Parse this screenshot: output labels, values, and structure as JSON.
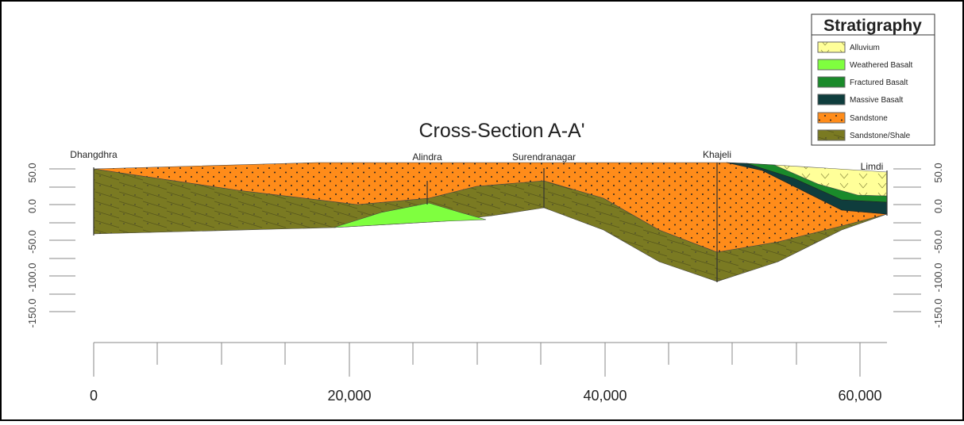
{
  "title": "Cross-Section A-A'",
  "legend": {
    "title": "Stratigraphy",
    "items": [
      "Alluvium",
      "Weathered Basalt",
      "Fractured  Basalt",
      "Massive Basalt",
      "Sandstone",
      "Sandstone/Shale"
    ]
  },
  "wells": [
    "Dhangdhra",
    "Alindra",
    "Surendranagar",
    "Khajeli",
    "Limdi"
  ],
  "left_axis": [
    "50.0",
    "0.0",
    "-50.0",
    "-100.0",
    "-150.0"
  ],
  "right_axis": [
    "50.0",
    "0.0",
    "-50.0",
    "-100.0",
    "-150.0"
  ],
  "x_axis": [
    "0",
    "20,000",
    "40,000",
    "60,000"
  ]
}
